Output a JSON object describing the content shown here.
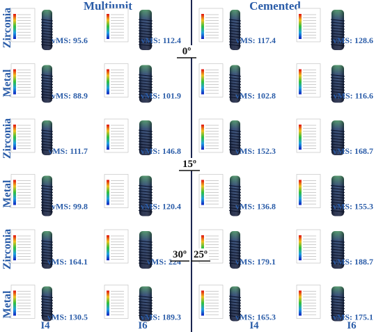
{
  "headers": [
    "Multiunit",
    "Cemented"
  ],
  "angles": [
    "0º",
    "15º",
    "30º",
    "25º"
  ],
  "columns": [
    "I4",
    "I6",
    "I4",
    "I6"
  ],
  "rows": [
    {
      "label": "Zirconia",
      "panels": [
        "vMS: 95.6",
        "vMS: 112.4",
        "vMS: 117.4",
        "vMS: 128.6"
      ]
    },
    {
      "label": "Metal",
      "panels": [
        "vMS: 88.9",
        "vMS: 101.9",
        "vMS: 102.8",
        "vMS: 116.6"
      ]
    },
    {
      "label": "Zirconia",
      "panels": [
        "vMS: 111.7",
        "vMS: 146.8",
        "vMS: 152.3",
        "vMS: 168.7"
      ]
    },
    {
      "label": "Metal",
      "panels": [
        "vMS: 99.8",
        "vMS: 120.4",
        "vMS: 136.8",
        "vMS: 155.3"
      ]
    },
    {
      "label": "Zirconia",
      "panels": [
        "vMS: 164.1",
        "vMS: 224",
        "vMS: 179.1",
        "vMS: 188.7"
      ]
    },
    {
      "label": "Metal",
      "panels": [
        "vMS: 130.5",
        "vMS: 189.3",
        "vMS: 165.3",
        "vMS: 175.1"
      ]
    }
  ]
}
